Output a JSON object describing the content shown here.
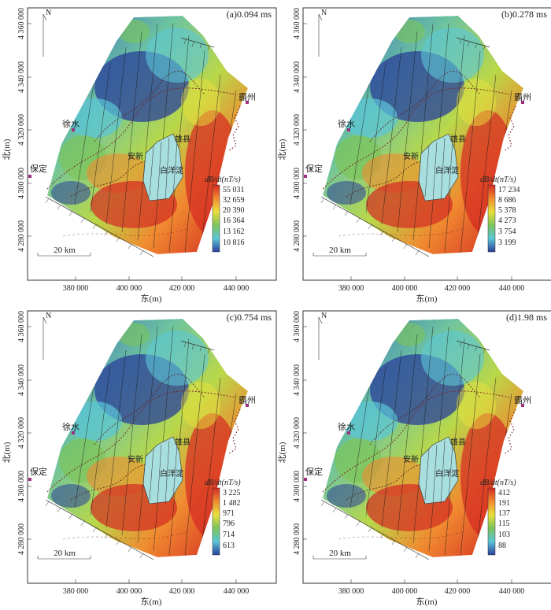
{
  "colors": {
    "cold": "#2a3f9a",
    "cyan": "#5bc6d8",
    "green": "#7cc45a",
    "yellow": "#eadf3c",
    "orange": "#f08a30",
    "hot": "#d42a22",
    "lake": "#a8dede",
    "city": "#a0307f",
    "boundary": "#7a1f1f"
  },
  "common": {
    "north": "N",
    "y_title": "北(m)",
    "x_title": "东(m)",
    "scalebar": "20 km",
    "legend_title": "dB/dt(nT/s)",
    "y_ticks": [
      "4 360 000",
      "4 340 000",
      "4 320 000",
      "4 300 000",
      "4 280 000"
    ],
    "x_ticks": [
      "380 000",
      "400 000",
      "420 000",
      "440 000"
    ],
    "cities": {
      "bazhou": "霸州",
      "xushui": "徐水",
      "baoding": "保定",
      "xiongxian": "雄县",
      "anxin": "安新",
      "baiyangdian": "白洋淀"
    }
  },
  "panels": [
    {
      "label": "(a)0.094 ms",
      "legend": [
        "55 031",
        "32 659",
        "20 390",
        "16 364",
        "13 162",
        "10 816"
      ]
    },
    {
      "label": "(b)0.278 ms",
      "legend": [
        "17 234",
        "8 686",
        "5 378",
        "4 273",
        "3 754",
        "3 199"
      ]
    },
    {
      "label": "(c)0.754 ms",
      "legend": [
        "3 225",
        "1 482",
        "971",
        "796",
        "714",
        "613"
      ]
    },
    {
      "label": "(d)1.98 ms",
      "legend": [
        "412",
        "191",
        "137",
        "115",
        "103",
        "88"
      ]
    }
  ]
}
